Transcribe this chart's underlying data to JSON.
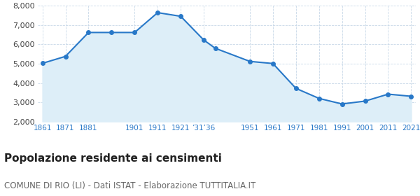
{
  "years": [
    1861,
    1871,
    1881,
    1891,
    1901,
    1911,
    1921,
    1931,
    1936,
    1951,
    1961,
    1971,
    1981,
    1991,
    2001,
    2011,
    2021
  ],
  "population": [
    5020,
    5380,
    6620,
    6620,
    6620,
    7650,
    7460,
    6230,
    5800,
    5120,
    5010,
    3720,
    3200,
    2910,
    3060,
    3420,
    3310
  ],
  "x_tick_positions": [
    1861,
    1871,
    1881,
    1901,
    1911,
    1921,
    1931,
    1951,
    1961,
    1971,
    1981,
    1991,
    2001,
    2011,
    2021
  ],
  "x_tick_labels": [
    "1861",
    "1871",
    "1881",
    "1901",
    "1911",
    "1921",
    "’31’36",
    "1951",
    "1961",
    "1971",
    "1981",
    "1991",
    "2001",
    "2011",
    "2021"
  ],
  "line_color": "#2878c8",
  "fill_color": "#ddeef8",
  "marker": "o",
  "marker_size": 4,
  "ylim": [
    2000,
    8000
  ],
  "yticks": [
    2000,
    3000,
    4000,
    5000,
    6000,
    7000,
    8000
  ],
  "title": "Popolazione residente ai censimenti",
  "subtitle": "COMUNE DI RIO (LI) - Dati ISTAT - Elaborazione TUTTITALIA.IT",
  "title_fontsize": 11,
  "subtitle_fontsize": 8.5,
  "background_color": "#ffffff",
  "grid_color": "#c8d8e8"
}
